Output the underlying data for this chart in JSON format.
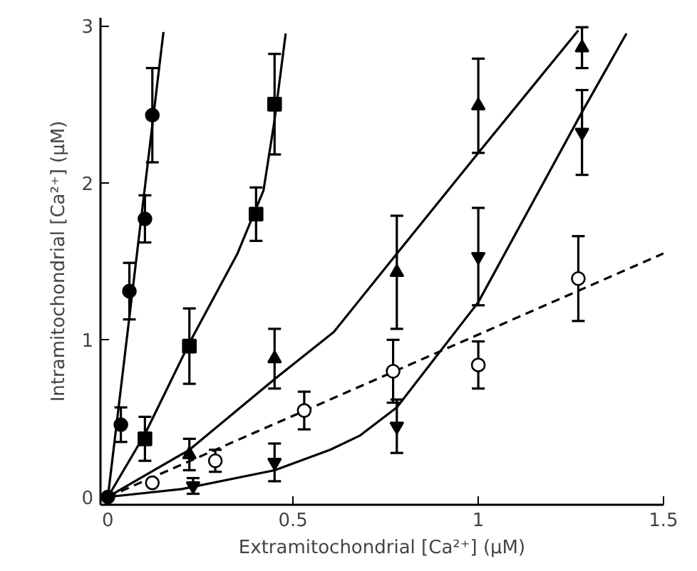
{
  "chart_data": {
    "type": "scatter",
    "xlabel": "Extramitochondrial [Ca²⁺] (µM)",
    "ylabel": "Intramitochondrial [Ca²⁺] (µM)",
    "xlim": [
      -0.02,
      1.5
    ],
    "ylim": [
      -0.05,
      3.05
    ],
    "xticks": [
      0,
      0.5,
      1,
      1.5
    ],
    "yticks": [
      0,
      1,
      2,
      3
    ],
    "grid": false,
    "series": [
      {
        "type": "line",
        "color": "#000000",
        "marker": "none",
        "line_style": "solid",
        "x": [
          0,
          0.15
        ],
        "values": [
          0,
          2.96
        ]
      },
      {
        "type": "line",
        "color": "#000000",
        "marker": "none",
        "line_style": "solid",
        "x": [
          0,
          0.1,
          0.22,
          0.35,
          0.42,
          0.45,
          0.48
        ],
        "values": [
          0,
          0.4,
          0.98,
          1.55,
          1.95,
          2.4,
          2.95
        ]
      },
      {
        "type": "line",
        "color": "#000000",
        "marker": "none",
        "line_style": "solid",
        "x": [
          0,
          0.22,
          0.45,
          0.61,
          0.76,
          1.0,
          1.27
        ],
        "values": [
          0,
          0.3,
          0.75,
          1.05,
          1.49,
          2.19,
          2.97
        ]
      },
      {
        "type": "line",
        "color": "#000000",
        "marker": "none",
        "line_style": "solid",
        "x": [
          0,
          0.2,
          0.45,
          0.6,
          0.68,
          0.78,
          1.0,
          1.28,
          1.4
        ],
        "values": [
          0,
          0.05,
          0.17,
          0.3,
          0.39,
          0.57,
          1.24,
          2.45,
          2.95
        ]
      },
      {
        "type": "line",
        "color": "#000000",
        "marker": "none",
        "line_style": "dashed",
        "x": [
          0,
          1.5
        ],
        "values": [
          0,
          1.55
        ]
      },
      {
        "color": "#000000",
        "marker": "circle",
        "x": [
          0,
          0.035,
          0.058,
          0.1,
          0.12
        ],
        "values": [
          0,
          0.46,
          1.31,
          1.77,
          2.43
        ],
        "errors": [
          null,
          0.11,
          0.18,
          0.15,
          0.3
        ]
      },
      {
        "color": "#000000",
        "marker": "square",
        "x": [
          0.1,
          0.22,
          0.4,
          0.45
        ],
        "values": [
          0.37,
          0.96,
          1.8,
          2.5
        ],
        "errors": [
          0.14,
          0.24,
          0.17,
          0.32
        ]
      },
      {
        "color": "#000000",
        "marker": "triangle",
        "x": [
          0.22,
          0.45,
          0.78,
          1.0,
          1.28
        ],
        "values": [
          0.27,
          0.88,
          1.43,
          2.49,
          2.86
        ],
        "errors": [
          0.1,
          0.19,
          0.36,
          0.3,
          0.13
        ]
      },
      {
        "color": "#000000",
        "marker": "triangle_down",
        "x": [
          0.23,
          0.45,
          0.78,
          1.0,
          1.28
        ],
        "values": [
          0.07,
          0.22,
          0.45,
          1.53,
          2.32
        ],
        "errors": [
          0.05,
          0.12,
          0.17,
          0.31,
          0.27
        ]
      },
      {
        "color": "#000000",
        "marker": "open_circle",
        "x": [
          0.12,
          0.29,
          0.53,
          0.77,
          1.0,
          1.27
        ],
        "values": [
          0.09,
          0.23,
          0.55,
          0.8,
          0.84,
          1.39
        ],
        "errors": [
          null,
          0.07,
          0.12,
          0.2,
          0.15,
          0.27
        ]
      }
    ]
  }
}
